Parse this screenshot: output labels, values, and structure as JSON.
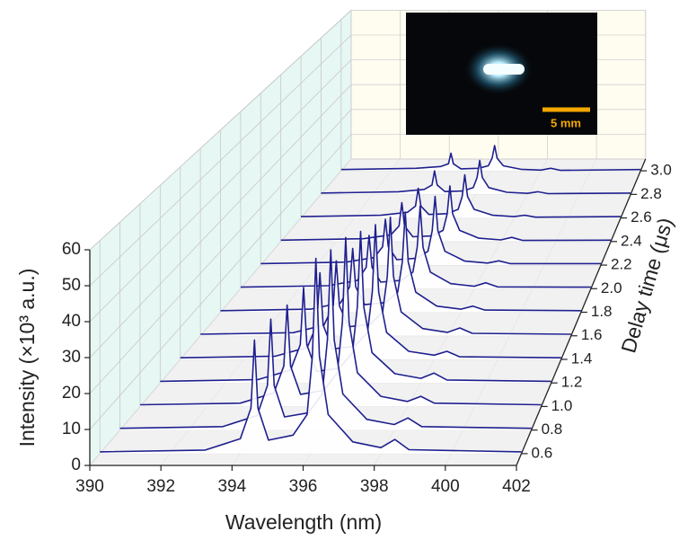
{
  "chart_data": {
    "type": "waterfall",
    "x_label": "Wavelength (nm)",
    "y_label": "Intensity (×10³ a.u.)",
    "z_label": "Delay time (μs)",
    "xlim": [
      390,
      402
    ],
    "xticks": [
      390,
      392,
      394,
      396,
      398,
      400,
      402
    ],
    "ylim": [
      0,
      60
    ],
    "yticks": [
      0,
      10,
      20,
      30,
      40,
      50,
      60
    ],
    "zlim": [
      0.5,
      3.1
    ],
    "zticks": [
      0.6,
      0.8,
      {
        "value": 1.0,
        "label": "1.0"
      },
      1.2,
      1.4,
      1.6,
      1.8,
      {
        "value": 2.0,
        "label": "2.0"
      },
      2.2,
      2.4,
      2.6,
      2.8,
      {
        "value": 3.0,
        "label": "3.0"
      }
    ],
    "grid": true,
    "color": "#1f1f8f",
    "x": [
      390,
      393,
      394,
      394.3,
      394.4,
      394.5,
      394.8,
      395.5,
      395.9,
      396.05,
      396.15,
      396.25,
      396.5,
      397.2,
      398.0,
      398.4,
      398.8,
      402
    ],
    "z": [
      0.6,
      0.8,
      1.0,
      1.2,
      1.4,
      1.6,
      1.8,
      2.0,
      2.2,
      2.4,
      2.6,
      2.8,
      3.0
    ],
    "series": [
      {
        "values": [
          0.5,
          1,
          4.2,
          12.8,
          32,
          12.8,
          3.8,
          5.2,
          11,
          27.5,
          55,
          27.5,
          11,
          3.3,
          1.7,
          4,
          1.1,
          0.5
        ]
      },
      {
        "values": [
          0.5,
          1,
          4.2,
          12.8,
          32,
          12.8,
          3.8,
          5,
          10.4,
          26,
          52,
          26,
          10.4,
          3.1,
          1.6,
          3.5,
          1,
          0.5
        ]
      },
      {
        "values": [
          0.5,
          1,
          4,
          12,
          30,
          12,
          3.6,
          4.8,
          10,
          25,
          50,
          25,
          10,
          3,
          1.5,
          3,
          1,
          0.5
        ]
      },
      {
        "values": [
          0.5,
          1,
          3.9,
          11.6,
          29,
          11.6,
          3.5,
          4.5,
          9.2,
          23,
          46,
          23,
          9.2,
          2.8,
          1.4,
          3,
          0.9,
          0.5
        ]
      },
      {
        "values": [
          0.5,
          1,
          3.7,
          10.8,
          27,
          10.8,
          3.2,
          4.1,
          8.4,
          21,
          42,
          21,
          8.4,
          2.5,
          1.3,
          2.5,
          0.8,
          0.5
        ]
      },
      {
        "values": [
          0.5,
          1,
          3.4,
          9.6,
          24,
          9.6,
          2.9,
          3.7,
          7.6,
          19,
          38,
          19,
          7.6,
          2.3,
          1.1,
          2.5,
          0.8,
          0.5
        ]
      },
      {
        "values": [
          0.5,
          1,
          3.1,
          8.4,
          21,
          8.4,
          2.5,
          3.2,
          6.6,
          16.5,
          33,
          16.5,
          6.6,
          2,
          1,
          2,
          0.7,
          0.5
        ]
      },
      {
        "values": [
          0.5,
          1,
          2.8,
          7.2,
          18,
          7.2,
          2.2,
          2.8,
          5.6,
          14,
          28,
          14,
          5.6,
          1.7,
          0.8,
          2,
          0.6,
          0.5
        ]
      },
      {
        "values": [
          0.5,
          1,
          2.6,
          6.4,
          16,
          6.4,
          1.9,
          2.4,
          4.8,
          12,
          24,
          12,
          4.8,
          1.4,
          0.7,
          1.5,
          0.5,
          0.5
        ]
      },
      {
        "values": [
          0.5,
          1,
          2.4,
          5.6,
          14,
          5.6,
          1.7,
          2,
          4,
          10,
          20,
          10,
          4,
          1.2,
          0.6,
          1.5,
          0.4,
          0.5
        ]
      },
      {
        "values": [
          0.5,
          1,
          2.1,
          4.4,
          11,
          4.4,
          1.3,
          1.6,
          3.2,
          8,
          16,
          8,
          3.2,
          1,
          0.5,
          1,
          0.3,
          0.5
        ]
      },
      {
        "values": [
          0.5,
          1,
          1.9,
          3.6,
          9,
          3.6,
          1.1,
          1.3,
          2.6,
          6.5,
          13,
          6.5,
          2.6,
          0.8,
          0.4,
          1,
          0.3,
          0.5
        ]
      },
      {
        "values": [
          0.5,
          1,
          1.7,
          2.8,
          7,
          2.8,
          0.8,
          1,
          2,
          5,
          10,
          5,
          2,
          0.6,
          0.3,
          1,
          0.2,
          0.5
        ]
      }
    ]
  },
  "inset": {
    "scale_label": "5 mm"
  }
}
